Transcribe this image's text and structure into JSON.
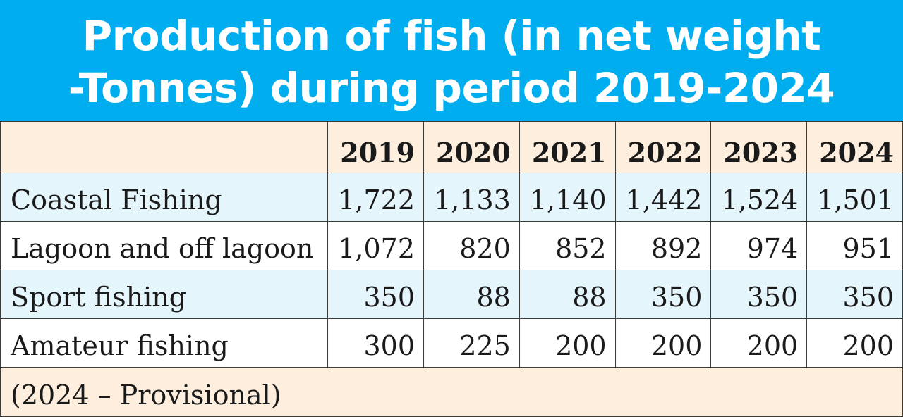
{
  "chart_data": {
    "type": "table",
    "title": "Production of fish (in net weight -Tonnes) during period 2019-2024",
    "title_lines": [
      "Production of fish (in net weight",
      "-Tonnes) during period 2019-2024"
    ],
    "columns": [
      "",
      "2019",
      "2020",
      "2021",
      "2022",
      "2023",
      "2024"
    ],
    "rows": [
      {
        "label": "Coastal Fishing",
        "values": [
          "1,722",
          "1,133",
          "1,140",
          "1,442",
          "1,524",
          "1,501"
        ]
      },
      {
        "label": "Lagoon and off lagoon",
        "values": [
          "1,072",
          "820",
          "852",
          "892",
          "974",
          "951"
        ]
      },
      {
        "label": "Sport fishing",
        "values": [
          "350",
          "88",
          "88",
          "350",
          "350",
          "350"
        ]
      },
      {
        "label": "Amateur fishing",
        "values": [
          "300",
          "225",
          "200",
          "200",
          "200",
          "200"
        ]
      }
    ],
    "footnote": "(2024 – Provisional)"
  },
  "colors": {
    "title_bg": "#00aeef",
    "header_bg": "#fdeedd",
    "alt_row_bg": "#e4f5fc",
    "border": "#3a3a3a"
  }
}
